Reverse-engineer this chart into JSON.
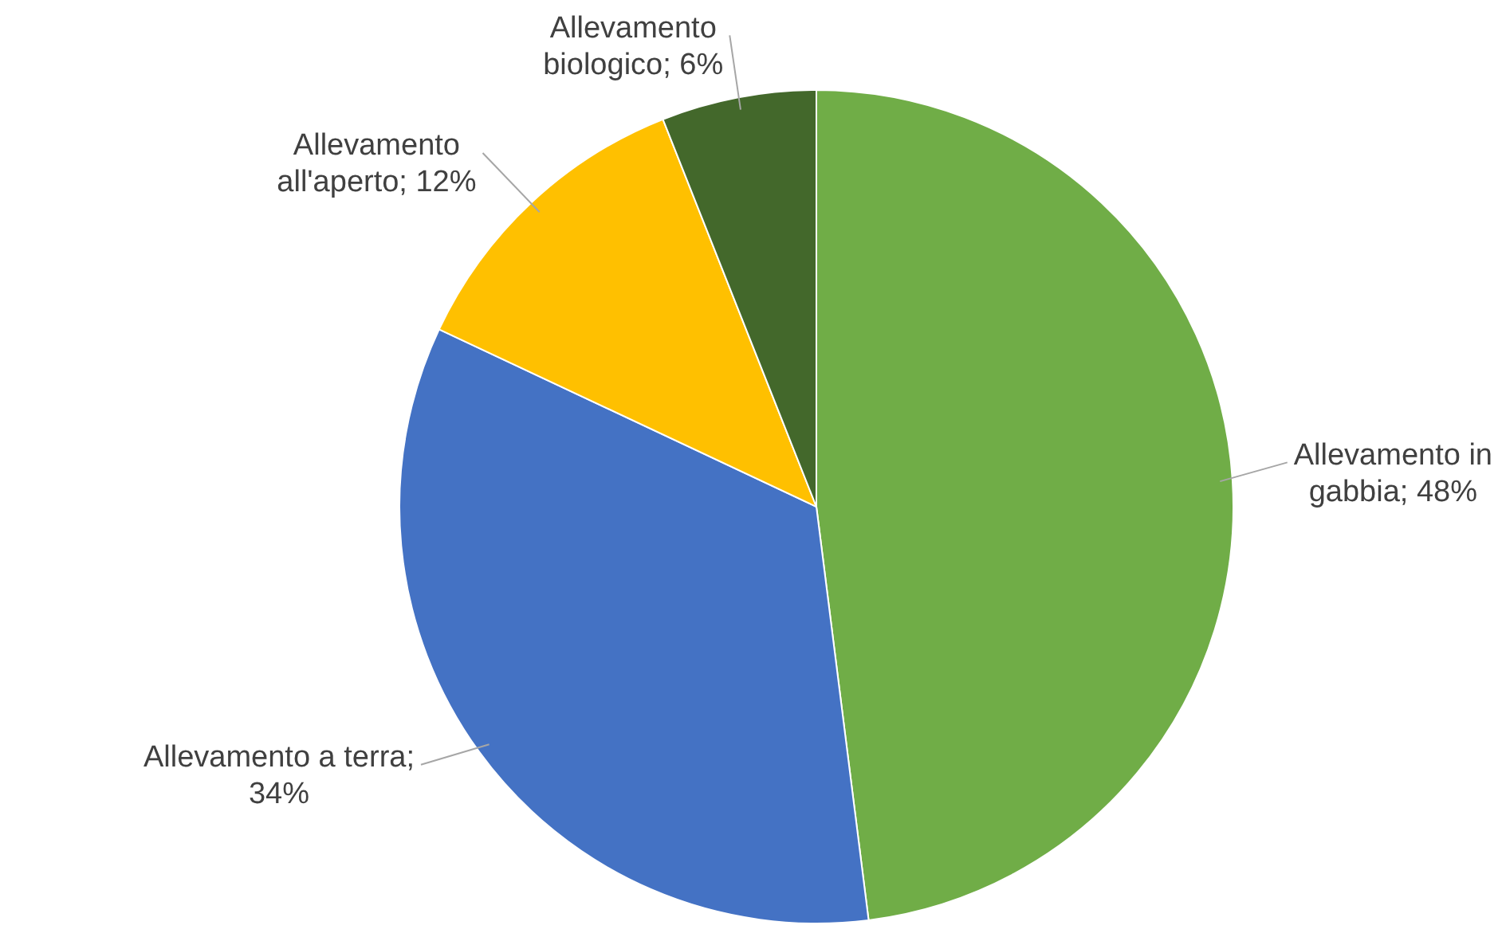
{
  "chart_data": {
    "type": "pie",
    "categories": [
      "Allevamento in gabbia; 48%",
      "Allevamento a terra; 34%",
      "Allevamento all'aperto; 12%",
      "Allevamento biologico; 6%"
    ],
    "values": [
      48,
      34,
      12,
      6
    ],
    "colors": [
      "#70ad47",
      "#4472c4",
      "#ffc000",
      "#43682b"
    ],
    "legend": false
  }
}
